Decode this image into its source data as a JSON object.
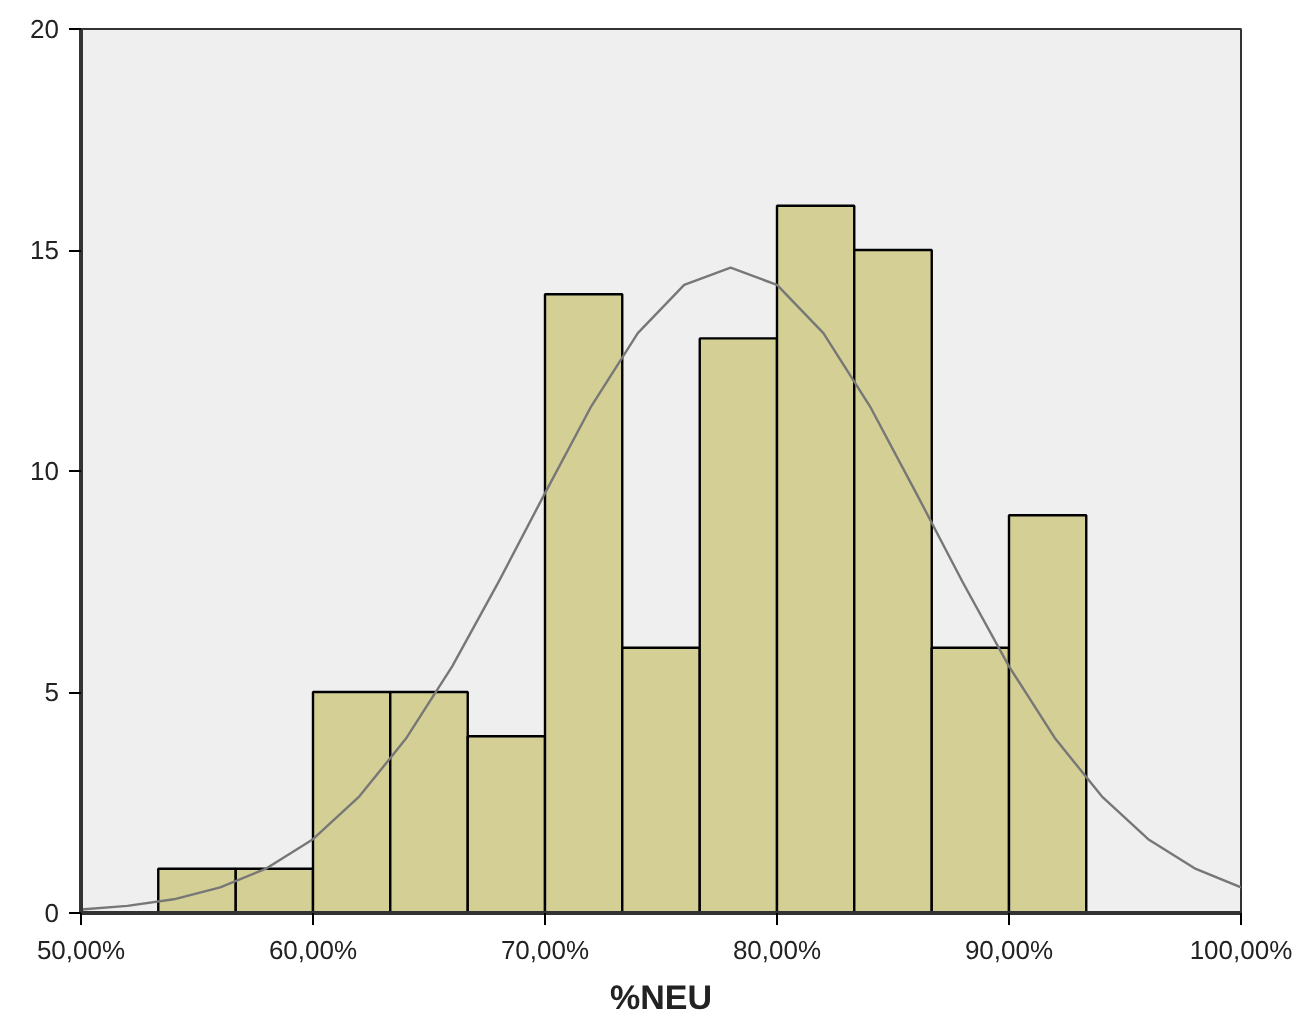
{
  "chart_data": {
    "type": "histogram",
    "xlabel": "%NEU",
    "bins": [
      53.33,
      56.67,
      60,
      63.33,
      66.67,
      70,
      73.33,
      76.67,
      80,
      83.33,
      86.67,
      90,
      93.33
    ],
    "values": [
      1,
      1,
      5,
      5,
      4,
      14,
      6,
      13,
      16,
      15,
      6,
      9
    ],
    "color": "#d3cf95",
    "series": [
      {
        "type": "line",
        "color": "#777777",
        "x": [
          50,
          52,
          54,
          56,
          58,
          60,
          62,
          64,
          66,
          68,
          70,
          72,
          74,
          76,
          78,
          80,
          82,
          84,
          86,
          88,
          90,
          92,
          94,
          96,
          98,
          100
        ],
        "values": [
          0.08,
          0.16,
          0.31,
          0.58,
          1.01,
          1.67,
          2.64,
          3.94,
          5.58,
          7.49,
          9.5,
          11.47,
          13.12,
          14.21,
          14.6,
          14.21,
          13.12,
          11.47,
          9.5,
          7.49,
          5.58,
          3.94,
          2.64,
          1.67,
          1.01,
          0.58
        ]
      }
    ],
    "xlim": [
      50,
      100
    ],
    "xticks": [
      {
        "value": 50,
        "label": "50,00%"
      },
      {
        "value": 60,
        "label": "60,00%"
      },
      {
        "value": 70,
        "label": "70,00%"
      },
      {
        "value": 80,
        "label": "80,00%"
      },
      {
        "value": 90,
        "label": "90,00%"
      },
      {
        "value": 100,
        "label": "100,00%"
      }
    ],
    "ylim": [
      0,
      20
    ],
    "yticks": [
      0,
      5,
      10,
      15,
      20
    ],
    "grid": false
  }
}
